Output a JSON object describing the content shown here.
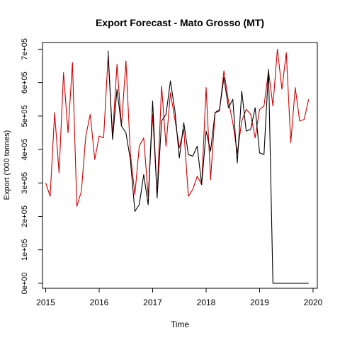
{
  "chart_data": {
    "type": "line",
    "title": "Export Forecast - Mato Grosso (MT)",
    "xlabel": "Time",
    "ylabel": "Export ('000 tonnes)",
    "xlim": [
      2014.94,
      2020.08
    ],
    "ylim": [
      -15000,
      720000
    ],
    "xticks": [
      2015,
      2016,
      2017,
      2018,
      2019,
      2020
    ],
    "xtick_labels": [
      "2015",
      "2016",
      "2017",
      "2018",
      "2019",
      "2020"
    ],
    "yticks": [
      0,
      100000,
      200000,
      300000,
      400000,
      500000,
      600000,
      700000
    ],
    "ytick_labels": [
      "0e+00",
      "1e+05",
      "2e+05",
      "3e+05",
      "4e+05",
      "5e+05",
      "6e+05",
      "7e+05"
    ],
    "grid": false,
    "series": [
      {
        "color": "#cc0000",
        "x": [
          2015.0,
          2015.083,
          2015.167,
          2015.25,
          2015.333,
          2015.417,
          2015.5,
          2015.583,
          2015.667,
          2015.75,
          2015.833,
          2015.917,
          2016.0,
          2016.083,
          2016.167,
          2016.25,
          2016.333,
          2016.417,
          2016.5,
          2016.583,
          2016.667,
          2016.75,
          2016.833,
          2016.917,
          2017.0,
          2017.083,
          2017.167,
          2017.25,
          2017.333,
          2017.417,
          2017.5,
          2017.583,
          2017.667,
          2017.75,
          2017.833,
          2017.917,
          2018.0,
          2018.083,
          2018.167,
          2018.25,
          2018.333,
          2018.417,
          2018.5,
          2018.583,
          2018.667,
          2018.75,
          2018.833,
          2018.917,
          2019.0,
          2019.083,
          2019.167,
          2019.25,
          2019.333,
          2019.417,
          2019.5,
          2019.583,
          2019.667,
          2019.75,
          2019.833,
          2019.917
        ],
        "values": [
          300000,
          260000,
          510000,
          330000,
          630000,
          450000,
          660000,
          230000,
          275000,
          440000,
          505000,
          370000,
          440000,
          435000,
          680000,
          440000,
          655000,
          470000,
          665000,
          390000,
          265000,
          410000,
          435000,
          260000,
          505000,
          265000,
          590000,
          410000,
          570000,
          490000,
          405000,
          460000,
          260000,
          280000,
          320000,
          295000,
          585000,
          310000,
          510000,
          515000,
          635000,
          545000,
          480000,
          390000,
          485000,
          520000,
          505000,
          435000,
          520000,
          530000,
          635000,
          530000,
          700000,
          580000,
          690000,
          420000,
          585000,
          485000,
          490000,
          550000
        ]
      },
      {
        "color": "#000000",
        "x": [
          2016.167,
          2016.25,
          2016.333,
          2016.417,
          2016.5,
          2016.583,
          2016.667,
          2016.75,
          2016.833,
          2016.917,
          2017.0,
          2017.083,
          2017.167,
          2017.25,
          2017.333,
          2017.417,
          2017.5,
          2017.583,
          2017.667,
          2017.75,
          2017.833,
          2017.917,
          2018.0,
          2018.083,
          2018.167,
          2018.25,
          2018.333,
          2018.417,
          2018.5,
          2018.583,
          2018.667,
          2018.75,
          2018.833,
          2018.917,
          2019.0,
          2019.083,
          2019.167,
          2019.25,
          2019.333,
          2019.417,
          2019.5,
          2019.583,
          2019.667,
          2019.75,
          2019.833,
          2019.917
        ],
        "values": [
          695000,
          430000,
          580000,
          470000,
          450000,
          370000,
          215000,
          235000,
          325000,
          235000,
          545000,
          255000,
          485000,
          505000,
          605000,
          515000,
          375000,
          480000,
          385000,
          380000,
          410000,
          295000,
          455000,
          395000,
          510000,
          520000,
          615000,
          525000,
          550000,
          360000,
          575000,
          455000,
          460000,
          525000,
          390000,
          385000,
          640000,
          0,
          0,
          0,
          0,
          0,
          0,
          0,
          0,
          0
        ]
      }
    ]
  }
}
